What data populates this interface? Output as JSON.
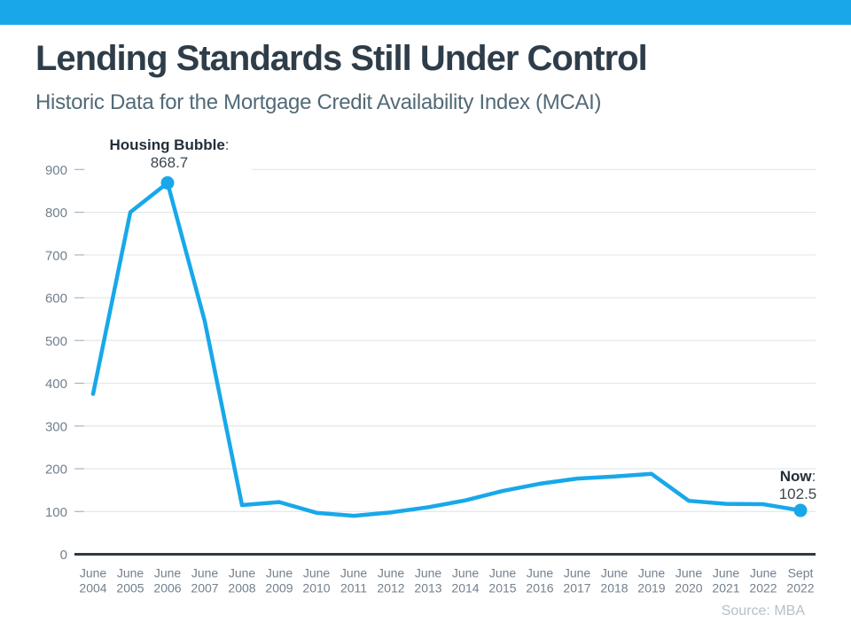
{
  "page": {
    "title": "Lending Standards Still Under Control",
    "subtitle": "Historic Data for the Mortgage Credit Availability Index (MCAI)",
    "source": "Source: MBA"
  },
  "colors": {
    "accent": "#18a8ea",
    "top_bar": "#18a8ea",
    "line": "#18a8ea",
    "title_text": "#2e3d49",
    "subtitle_text": "#526a77",
    "axis_label": "#72808e",
    "gridline": "#e3e7ea",
    "tick": "#aab4bd",
    "zero_axis": "#2e3b45",
    "annotation_label": "#222f3a",
    "annotation_colon": "#4a545e",
    "annotation_value": "#3c4650",
    "source_text": "#b4c0c8",
    "background": "#ffffff"
  },
  "chart_data": {
    "type": "line",
    "title": "",
    "xlabel": "",
    "ylabel": "",
    "ylim": [
      0,
      900
    ],
    "ytick_interval": 100,
    "grid": true,
    "legend_position": "none",
    "categories": [
      [
        "June",
        "2004"
      ],
      [
        "June",
        "2005"
      ],
      [
        "June",
        "2006"
      ],
      [
        "June",
        "2007"
      ],
      [
        "June",
        "2008"
      ],
      [
        "June",
        "2009"
      ],
      [
        "June",
        "2010"
      ],
      [
        "June",
        "2011"
      ],
      [
        "June",
        "2012"
      ],
      [
        "June",
        "2013"
      ],
      [
        "June",
        "2014"
      ],
      [
        "June",
        "2015"
      ],
      [
        "June",
        "2016"
      ],
      [
        "June",
        "2017"
      ],
      [
        "June",
        "2018"
      ],
      [
        "June",
        "2019"
      ],
      [
        "June",
        "2020"
      ],
      [
        "June",
        "2021"
      ],
      [
        "June",
        "2022"
      ],
      [
        "Sept",
        "2022"
      ]
    ],
    "series": [
      {
        "name": "Mortgage Credit Availability Index",
        "values": [
          375,
          800,
          868.7,
          545,
          115,
          122,
          97,
          90,
          98,
          110,
          126,
          148,
          165,
          177,
          182,
          188,
          125,
          118,
          117,
          102.5
        ]
      }
    ],
    "annotations": [
      {
        "index": 2,
        "label": "Housing Bubble",
        "separator": ":",
        "value_text": "868.7",
        "marker": true
      },
      {
        "index": 19,
        "label": "Now",
        "separator": ":",
        "value_text": "102.5",
        "marker": true
      }
    ]
  }
}
